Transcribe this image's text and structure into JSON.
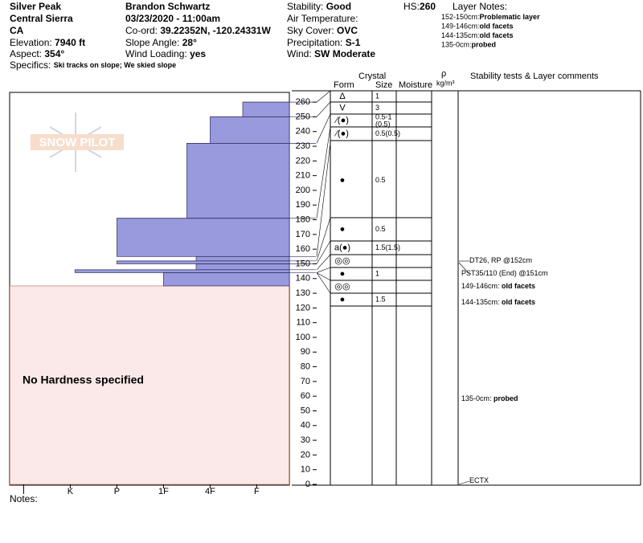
{
  "header": {
    "location": [
      "Silver Peak",
      "Central Sierra",
      "CA"
    ],
    "elevation": {
      "label": "Elevation:",
      "value": "7940 ft"
    },
    "aspect": {
      "label": "Aspect:",
      "value": "354°"
    },
    "specifics": {
      "label": "Specifics:",
      "value": "Ski tracks on slope; We skied slope"
    },
    "observer": "Brandon Schwartz",
    "datetime": "03/23/2020 - 11:00am",
    "coord": {
      "label": "Co-ord:",
      "value": "39.22352N, -120.24331W"
    },
    "slope": {
      "label": "Slope Angle:",
      "value": "28°"
    },
    "wind_loading": {
      "label": "Wind Loading:",
      "value": "yes"
    },
    "stability": {
      "label": "Stability:",
      "value": "Good"
    },
    "air_temp": {
      "label": "Air Temperature:"
    },
    "sky": {
      "label": "Sky Cover:",
      "value": "OVC"
    },
    "precip": {
      "label": "Precipitation:",
      "value": "S-1"
    },
    "wind": {
      "label": "Wind:",
      "value": "SW Moderate"
    },
    "hs": {
      "label": "HS:",
      "value": "260"
    },
    "layer_notes_title": "Layer Notes:",
    "layer_notes": [
      {
        "range": "152-150cm:",
        "text": "Problematic layer"
      },
      {
        "range": "149-146cm:",
        "text": "old facets"
      },
      {
        "range": "144-135cm:",
        "text": "old facets"
      },
      {
        "range": "135-0cm:",
        "text": "probed"
      }
    ]
  },
  "columns": {
    "crystal": "Crystal",
    "form": "Form",
    "size": "Size",
    "moisture": "Moisture",
    "rho": "ρ",
    "density_unit": "kg/m³",
    "comments": "Stability tests & Layer comments"
  },
  "watermark": "SNOW PILOT",
  "chart_data": {
    "type": "hardness-profile",
    "ylim": [
      0,
      265
    ],
    "yticks": [
      0,
      10,
      20,
      30,
      40,
      50,
      60,
      70,
      80,
      90,
      100,
      110,
      120,
      130,
      140,
      150,
      160,
      170,
      180,
      190,
      200,
      210,
      220,
      230,
      240,
      250,
      260
    ],
    "xlim": [
      6.3,
      0.3
    ],
    "xticks": [
      {
        "value": 6,
        "label": "I"
      },
      {
        "value": 5,
        "label": "K"
      },
      {
        "value": 4,
        "label": "P"
      },
      {
        "value": 3,
        "label": "1F"
      },
      {
        "value": 2,
        "label": "4F"
      },
      {
        "value": 1,
        "label": "F"
      }
    ],
    "color": "#9999dd",
    "layers": [
      {
        "top": 260,
        "bottom": 250,
        "hardness": 1.3
      },
      {
        "top": 250,
        "bottom": 232,
        "hardness": 2.0
      },
      {
        "top": 232,
        "bottom": 181,
        "hardness": 2.5
      },
      {
        "top": 181,
        "bottom": 155,
        "hardness": 4.0
      },
      {
        "top": 155,
        "bottom": 152,
        "hardness": 2.3
      },
      {
        "top": 152,
        "bottom": 150,
        "hardness": 4.0
      },
      {
        "top": 150,
        "bottom": 146,
        "hardness": 2.3
      },
      {
        "top": 146,
        "bottom": 144,
        "hardness": 4.9
      },
      {
        "top": 144,
        "bottom": 135,
        "hardness": 3.0
      }
    ],
    "no_hardness": {
      "label": "No Hardness specified",
      "top": 135
    }
  },
  "crystals": [
    {
      "form": "Δ",
      "size": "1"
    },
    {
      "form": "V",
      "size": "3"
    },
    {
      "form": "⁄(●)",
      "size": "0.5-1",
      "size_note": "(0.5)"
    },
    {
      "form": "⁄(●)",
      "size": "0.5(0.5)"
    },
    {
      "form": "●",
      "size": "0.5"
    },
    {
      "form": "●",
      "size": "0.5"
    },
    {
      "form": "a(●)",
      "size": "1.5(1.5)"
    },
    {
      "form": "◎◎"
    },
    {
      "form": "●",
      "size": "1"
    },
    {
      "form": "◎◎"
    },
    {
      "form": "●",
      "size": "1.5"
    }
  ],
  "comments": [
    {
      "text": "DT26, RP @152cm"
    },
    {
      "text": "PST35/110 (End) @151cm"
    },
    {
      "range": "149-146cm:",
      "text": "old facets"
    },
    {
      "range": "144-135cm:",
      "text": "old facets"
    },
    {
      "range": "135-0cm:",
      "text": "probed"
    },
    {
      "text": "ECTX"
    }
  ],
  "notes_label": "Notes:"
}
